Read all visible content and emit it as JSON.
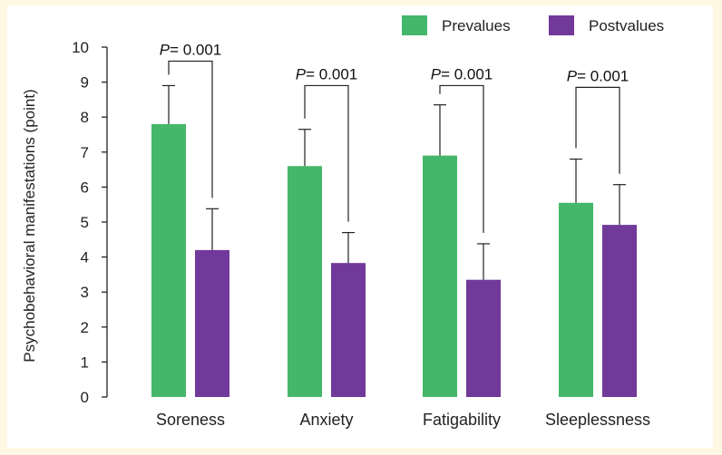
{
  "chart_data": {
    "type": "bar",
    "categories": [
      "Soreness",
      "Anxiety",
      "Fatigability",
      "Sleeplessness"
    ],
    "series": [
      {
        "name": "Prevalues",
        "values": [
          7.8,
          6.6,
          6.9,
          5.55
        ],
        "error": [
          1.1,
          1.05,
          1.45,
          1.25
        ]
      },
      {
        "name": "Postvalues",
        "values": [
          4.2,
          3.83,
          3.35,
          4.92
        ],
        "error": [
          1.18,
          0.87,
          1.03,
          1.15
        ]
      }
    ],
    "ylabel": "Psychobehavioral manifestations (point)",
    "ylim": [
      0,
      10
    ],
    "yticks": [
      "0",
      "1",
      "2",
      "3",
      "4",
      "5",
      "6",
      "7",
      "8",
      "9",
      "10"
    ],
    "annotations": [
      {
        "category": "Soreness",
        "p_prefix": "P",
        "p_text": "= 0.001",
        "level": 9.6
      },
      {
        "category": "Anxiety",
        "p_prefix": "P",
        "p_text": "= 0.001",
        "level": 8.9
      },
      {
        "category": "Fatigability",
        "p_prefix": "P",
        "p_text": "= 0.001",
        "level": 8.9
      },
      {
        "category": "Sleeplessness",
        "p_prefix": "P",
        "p_text": "= 0.001",
        "level": 8.85
      }
    ],
    "legend_position": "top-right",
    "grid": false,
    "colors": {
      "Prevalues": "#45b76a",
      "Postvalues": "#71399a",
      "axis": "#222222"
    }
  }
}
